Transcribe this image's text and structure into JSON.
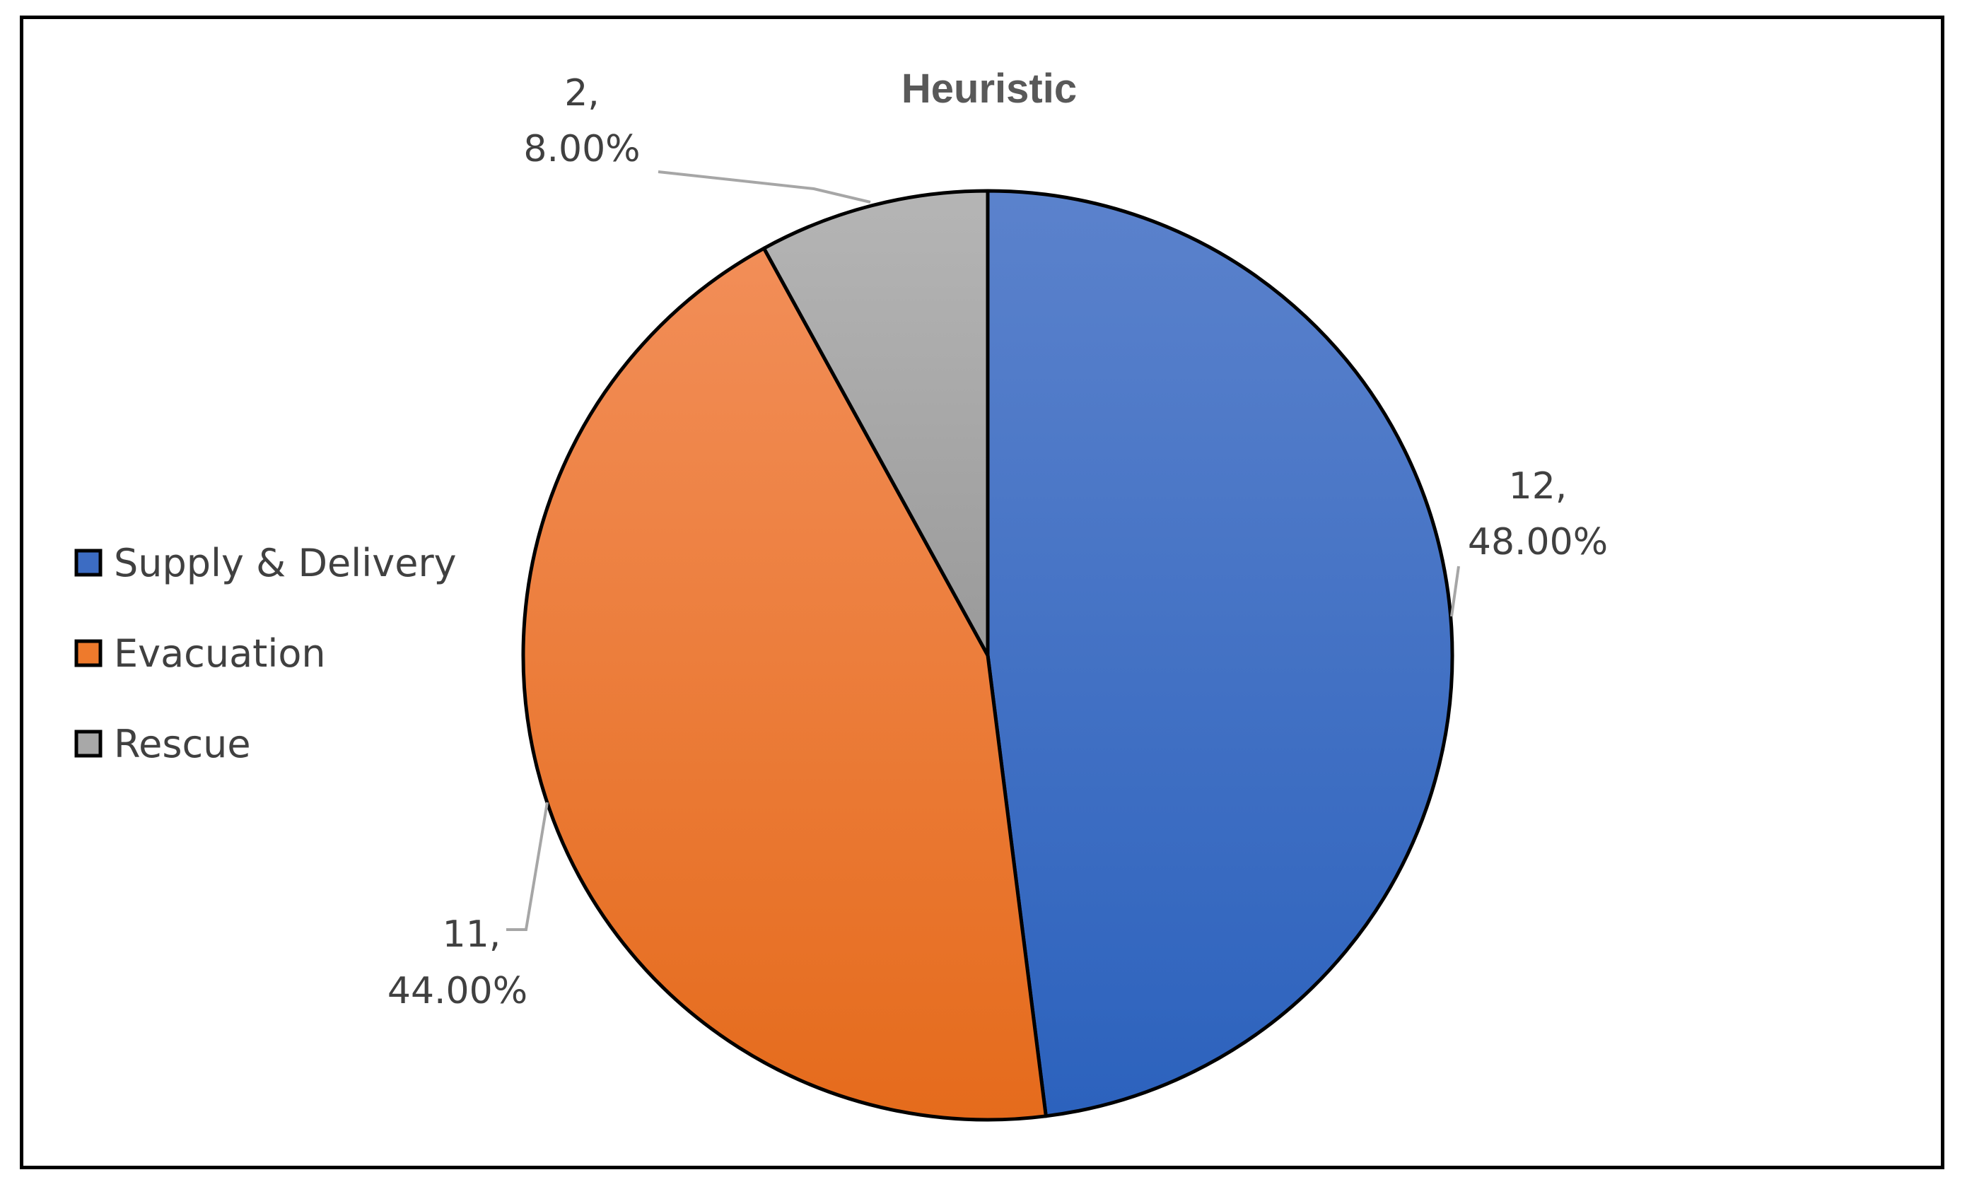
{
  "chart_data": {
    "type": "pie",
    "title": "Heuristic",
    "categories": [
      "Supply & Delivery",
      "Evacuation",
      "Rescue"
    ],
    "values": [
      12,
      11,
      2
    ],
    "percentages": [
      "48.00%",
      "44.00%",
      "8.00%"
    ],
    "data_labels": [
      {
        "count": "12,",
        "percent": "48.00%"
      },
      {
        "count": "11,",
        "percent": "44.00%"
      },
      {
        "count": "2,",
        "percent": "8.00%"
      }
    ],
    "colors": {
      "Supply & Delivery": [
        "#5b82cc",
        "#2c62bd"
      ],
      "Evacuation": [
        "#f28e58",
        "#e56b1c"
      ],
      "Rescue": [
        "#b5b5b5",
        "#9a9a9a"
      ]
    },
    "legend": {
      "position": "left",
      "entries": [
        "Supply & Delivery",
        "Evacuation",
        "Rescue"
      ]
    },
    "start_angle": "12 o'clock",
    "direction": "clockwise"
  }
}
